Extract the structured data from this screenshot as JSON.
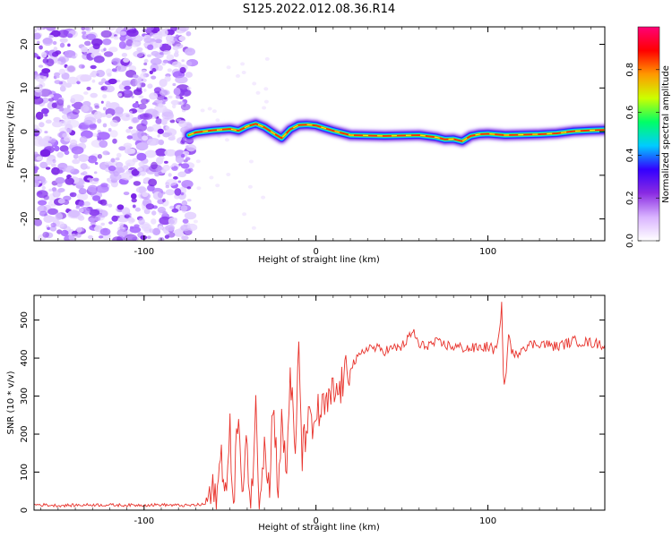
{
  "title": "S125.2022.012.08.36.R14",
  "chart_data": [
    {
      "type": "heatmap",
      "xlabel": "Height of straight line (km)",
      "ylabel": "Frequency (Hz)",
      "xlim": [
        -164,
        168
      ],
      "ylim": [
        -25,
        24
      ],
      "x_ticks": [
        -100,
        0,
        100
      ],
      "y_ticks": [
        -20,
        -10,
        0,
        10,
        20
      ],
      "colorbar": {
        "label": "Normalized spectral amplitude",
        "range": [
          0,
          1
        ],
        "ticks": [
          "0.0",
          "0.2",
          "0.4",
          "0.6",
          "0.8"
        ],
        "stops": [
          "#ffffff",
          "#d9b3ff",
          "#8a2be2",
          "#3300ff",
          "#00ccff",
          "#00ff66",
          "#ccff00",
          "#ff9900",
          "#ff0000",
          "#ff0077"
        ]
      },
      "noise_region_x": [
        -164,
        -74
      ],
      "signal_ridge": {
        "x": [
          -74,
          -70,
          -60,
          -50,
          -45,
          -40,
          -35,
          -30,
          -25,
          -20,
          -15,
          -10,
          -5,
          0,
          5,
          10,
          20,
          40,
          60,
          70,
          75,
          80,
          85,
          90,
          95,
          100,
          110,
          120,
          130,
          140,
          150,
          160,
          168
        ],
        "freq": [
          -0.8,
          -0.2,
          0.3,
          0.6,
          0.2,
          1.2,
          1.8,
          1.0,
          -0.3,
          -1.5,
          0.5,
          1.5,
          1.6,
          1.4,
          0.8,
          0.2,
          -0.8,
          -1.0,
          -0.8,
          -1.3,
          -1.8,
          -1.7,
          -2.2,
          -1.0,
          -0.6,
          -0.5,
          -0.8,
          -0.7,
          -0.6,
          -0.4,
          0.1,
          0.3,
          0.4
        ]
      }
    },
    {
      "type": "line",
      "xlabel": "Height of straight line (km)",
      "ylabel": "SNR (10 * v/v)",
      "xlim": [
        -164,
        168
      ],
      "ylim": [
        0,
        565
      ],
      "x_ticks": [
        -100,
        0,
        100
      ],
      "y_ticks": [
        0,
        100,
        200,
        300,
        400,
        500
      ],
      "series": [
        {
          "color": "#e8322b",
          "x": [
            -164,
            -150,
            -130,
            -110,
            -90,
            -75,
            -65,
            -60,
            -58,
            -55,
            -52,
            -50,
            -48,
            -45,
            -43,
            -40,
            -38,
            -35,
            -33,
            -30,
            -27,
            -25,
            -22,
            -20,
            -17,
            -15,
            -12,
            -10,
            -8,
            -5,
            -2,
            0,
            3,
            5,
            8,
            10,
            12,
            15,
            18,
            20,
            25,
            30,
            40,
            50,
            57,
            60,
            70,
            80,
            90,
            100,
            105,
            107,
            108,
            109,
            110,
            112,
            115,
            120,
            130,
            140,
            150,
            160,
            168
          ],
          "y": [
            15,
            12,
            14,
            13,
            14,
            12,
            15,
            45,
            15,
            150,
            40,
            200,
            30,
            270,
            20,
            180,
            10,
            260,
            15,
            200,
            40,
            300,
            60,
            220,
            100,
            380,
            120,
            440,
            140,
            240,
            200,
            260,
            250,
            270,
            280,
            310,
            300,
            330,
            360,
            380,
            400,
            430,
            420,
            430,
            470,
            430,
            440,
            430,
            425,
            430,
            420,
            470,
            560,
            350,
            330,
            460,
            400,
            430,
            440,
            430,
            445,
            440,
            435
          ]
        }
      ]
    }
  ]
}
